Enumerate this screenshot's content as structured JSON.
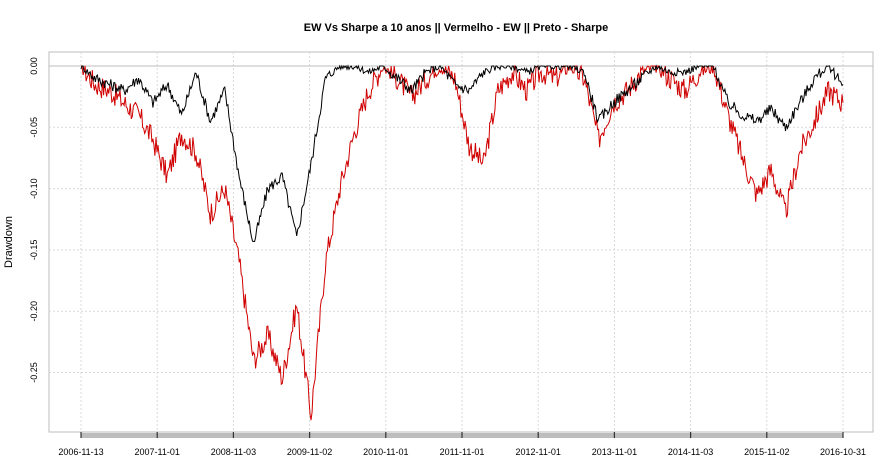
{
  "chart_data": {
    "type": "line",
    "title": "EW Vs Sharpe a 10 anos || Vermelho - EW || Preto - Sharpe",
    "xlabel": "",
    "ylabel": "Drawdown",
    "ylim": [
      -0.295,
      0.011
    ],
    "grid": true,
    "legend": "none (described in title)",
    "y_ticks": [
      "0.00",
      "-0.05",
      "-0.10",
      "-0.15",
      "-0.20",
      "-0.25"
    ],
    "y_tick_values": [
      0.0,
      -0.05,
      -0.1,
      -0.15,
      -0.2,
      -0.25
    ],
    "x_ticks": [
      "2006-11-13",
      "2007-11-01",
      "2008-11-03",
      "2009-11-02",
      "2010-11-01",
      "2011-11-01",
      "2012-11-01",
      "2013-11-01",
      "2014-11-03",
      "2015-11-02",
      "2016-10-31"
    ],
    "x": [
      "2006-11",
      "2007-02",
      "2007-05",
      "2007-08",
      "2007-11",
      "2008-01",
      "2008-03",
      "2008-05",
      "2008-07",
      "2008-09",
      "2008-10",
      "2008-11",
      "2009-01",
      "2009-03",
      "2009-05",
      "2009-07",
      "2009-09",
      "2009-11",
      "2010-01",
      "2010-03",
      "2010-05",
      "2010-07",
      "2010-09",
      "2010-11",
      "2011-01",
      "2011-03",
      "2011-05",
      "2011-08",
      "2011-10",
      "2011-12",
      "2012-03",
      "2012-06",
      "2012-09",
      "2012-11",
      "2013-02",
      "2013-05",
      "2013-07",
      "2013-09",
      "2013-11",
      "2014-02",
      "2014-05",
      "2014-08",
      "2014-11",
      "2015-02",
      "2015-05",
      "2015-07",
      "2015-09",
      "2015-11",
      "2016-01",
      "2016-02",
      "2016-04",
      "2016-06",
      "2016-08",
      "2016-10"
    ],
    "series": [
      {
        "name": "EW (Vermelho)",
        "color": "#d00000",
        "values": [
          0.0,
          -0.015,
          -0.02,
          -0.03,
          -0.04,
          -0.06,
          -0.09,
          -0.055,
          -0.07,
          -0.12,
          -0.1,
          -0.16,
          -0.24,
          -0.22,
          -0.255,
          -0.195,
          -0.285,
          -0.16,
          -0.1,
          -0.055,
          -0.02,
          0.0,
          -0.01,
          -0.025,
          -0.01,
          0.0,
          -0.01,
          -0.065,
          -0.08,
          -0.02,
          -0.005,
          -0.02,
          -0.005,
          -0.01,
          0.0,
          -0.01,
          -0.06,
          -0.03,
          -0.02,
          -0.005,
          0.0,
          -0.01,
          -0.02,
          -0.005,
          0.0,
          -0.04,
          -0.075,
          -0.105,
          -0.085,
          -0.12,
          -0.07,
          -0.045,
          -0.02,
          -0.03
        ]
      },
      {
        "name": "Sharpe (Preto)",
        "color": "#000000",
        "values": [
          0.0,
          -0.01,
          -0.015,
          -0.02,
          -0.01,
          -0.03,
          -0.015,
          -0.04,
          -0.005,
          -0.045,
          -0.02,
          -0.09,
          -0.145,
          -0.1,
          -0.09,
          -0.14,
          -0.08,
          -0.01,
          0.0,
          0.0,
          -0.005,
          0.0,
          -0.01,
          -0.02,
          -0.005,
          0.0,
          -0.015,
          -0.02,
          -0.005,
          0.0,
          0.0,
          -0.005,
          0.0,
          0.0,
          0.0,
          -0.005,
          -0.045,
          -0.03,
          -0.02,
          -0.01,
          0.0,
          -0.005,
          -0.005,
          0.0,
          0.0,
          -0.03,
          -0.04,
          -0.045,
          -0.035,
          -0.05,
          -0.03,
          -0.01,
          0.0,
          -0.015
        ]
      }
    ]
  }
}
